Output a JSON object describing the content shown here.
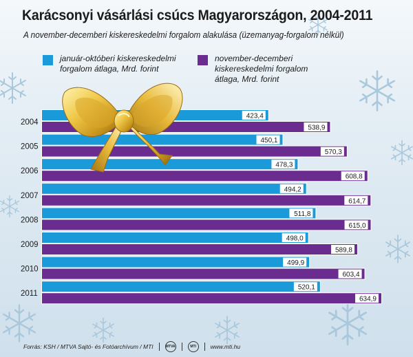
{
  "title": "Karácsonyi vásárlási csúcs Magyarországon, 2004-2011",
  "subtitle": "A november-decemberi kiskereskedelmi forgalom alakulása (üzemanyag-forgalom nélkül)",
  "legend": {
    "jan_oct": "január-októberi kiskereskedelmi forgalom átlaga, Mrd. forint",
    "nov_dec": "november-decemberi kiskereskedelmi forgalom átlaga, Mrd. forint"
  },
  "footer": {
    "source": "Forrás: KSH / MTVA Sajtó- és Fotóarchívum / MTI",
    "url": "www.mti.hu"
  },
  "colors": {
    "jan_oct": "#1a9ad9",
    "nov_dec": "#6a2c8e",
    "background": "#d8e6f0"
  },
  "icons": [
    "bow-decoration",
    "snowflake-decoration",
    "mtva-logo",
    "mti-logo"
  ],
  "chart_data": {
    "type": "bar",
    "orientation": "horizontal",
    "title": "Karácsonyi vásárlási csúcs Magyarországon, 2004-2011",
    "categories": [
      "2004",
      "2005",
      "2006",
      "2007",
      "2008",
      "2009",
      "2010",
      "2011"
    ],
    "series": [
      {
        "name": "január-októberi kiskereskedelmi forgalom átlaga, Mrd. forint",
        "values": [
          "423,4",
          "450,1",
          "478,3",
          "494,2",
          "511,8",
          "498,0",
          "499,9",
          "520,1"
        ]
      },
      {
        "name": "november-decemberi kiskereskedelmi forgalom átlaga, Mrd. forint",
        "values": [
          "538,9",
          "570,3",
          "608,8",
          "614,7",
          "615,0",
          "589,8",
          "603,4",
          "634,9"
        ]
      }
    ],
    "xlim": [
      0,
      634.9
    ],
    "grid": false,
    "legend_position": "top"
  }
}
